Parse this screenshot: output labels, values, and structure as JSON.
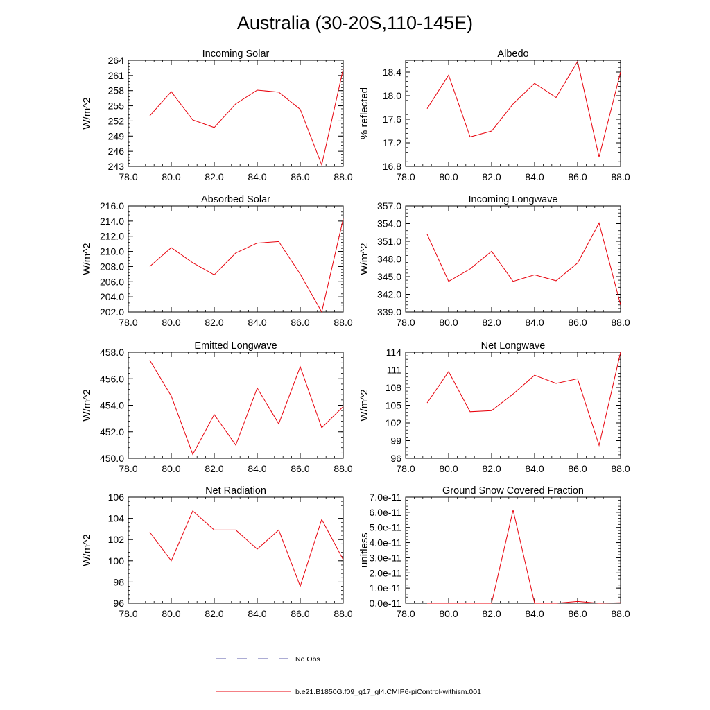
{
  "page": {
    "title": "Australia (30-20S,110-145E)"
  },
  "legend": {
    "entries": [
      {
        "label": "No Obs",
        "color": "#5a5aaa",
        "dash": true
      },
      {
        "label": "b.e21.B1850G.f09_g17_gl4.CMIP6-piControl-withism.001",
        "color": "#e8000b",
        "dash": false
      }
    ]
  },
  "series_color": "#e8000b",
  "chart_data": [
    {
      "type": "line",
      "title": "Incoming Solar",
      "ylabel": "W/m^2",
      "xlim": [
        78,
        88
      ],
      "xticks": [
        78,
        80,
        82,
        84,
        86,
        88
      ],
      "xtick_labels": [
        "78.0",
        "80.0",
        "82.0",
        "84.0",
        "86.0",
        "88.0"
      ],
      "ylim": [
        243,
        264
      ],
      "yticks": [
        243,
        246,
        249,
        252,
        255,
        258,
        261,
        264
      ],
      "ytick_labels": [
        "243",
        "246",
        "249",
        "252",
        "255",
        "258",
        "261",
        "264"
      ],
      "yminor_step": 0.6,
      "x": [
        79,
        80,
        81,
        82,
        83,
        84,
        85,
        86,
        87,
        88
      ],
      "y": [
        253.0,
        257.8,
        252.2,
        250.7,
        255.4,
        258.1,
        257.7,
        254.3,
        243.3,
        262.3
      ]
    },
    {
      "type": "line",
      "title": "Albedo",
      "ylabel": "% reflected",
      "xlim": [
        78,
        88
      ],
      "xticks": [
        78,
        80,
        82,
        84,
        86,
        88
      ],
      "xtick_labels": [
        "78.0",
        "80.0",
        "82.0",
        "84.0",
        "86.0",
        "88.0"
      ],
      "ylim": [
        16.8,
        18.6
      ],
      "yticks": [
        16.8,
        17.2,
        17.6,
        18.0,
        18.4
      ],
      "ytick_labels": [
        "16.8",
        "17.2",
        "17.6",
        "18.0",
        "18.4"
      ],
      "yminor_step": 0.08,
      "x": [
        79,
        80,
        81,
        82,
        83,
        84,
        85,
        86,
        87,
        88
      ],
      "y": [
        17.78,
        18.35,
        17.3,
        17.4,
        17.86,
        18.21,
        17.97,
        18.58,
        16.96,
        18.4
      ]
    },
    {
      "type": "line",
      "title": "Absorbed Solar",
      "ylabel": "W/m^2",
      "xlim": [
        78,
        88
      ],
      "xticks": [
        78,
        80,
        82,
        84,
        86,
        88
      ],
      "xtick_labels": [
        "78.0",
        "80.0",
        "82.0",
        "84.0",
        "86.0",
        "88.0"
      ],
      "ylim": [
        202,
        216
      ],
      "yticks": [
        202,
        204,
        206,
        208,
        210,
        212,
        214,
        216
      ],
      "ytick_labels": [
        "202.0",
        "204.0",
        "206.0",
        "208.0",
        "210.0",
        "212.0",
        "214.0",
        "216.0"
      ],
      "yminor_step": 0.4,
      "x": [
        79,
        80,
        81,
        82,
        83,
        84,
        85,
        86,
        87,
        88
      ],
      "y": [
        208.0,
        210.5,
        208.5,
        206.9,
        209.8,
        211.1,
        211.3,
        207.0,
        202.0,
        214.3
      ]
    },
    {
      "type": "line",
      "title": "Incoming Longwave",
      "ylabel": "W/m^2",
      "xlim": [
        78,
        88
      ],
      "xticks": [
        78,
        80,
        82,
        84,
        86,
        88
      ],
      "xtick_labels": [
        "78.0",
        "80.0",
        "82.0",
        "84.0",
        "86.0",
        "88.0"
      ],
      "ylim": [
        339,
        357
      ],
      "yticks": [
        339,
        342,
        345,
        348,
        351,
        354,
        357
      ],
      "ytick_labels": [
        "339.0",
        "342.0",
        "345.0",
        "348.0",
        "351.0",
        "354.0",
        "357.0"
      ],
      "yminor_step": 0.6,
      "x": [
        79,
        80,
        81,
        82,
        83,
        84,
        85,
        86,
        87,
        88
      ],
      "y": [
        352.2,
        344.2,
        346.3,
        349.3,
        344.2,
        345.3,
        344.3,
        347.3,
        354.1,
        340.2
      ]
    },
    {
      "type": "line",
      "title": "Emitted Longwave",
      "ylabel": "W/m^2",
      "xlim": [
        78,
        88
      ],
      "xticks": [
        78,
        80,
        82,
        84,
        86,
        88
      ],
      "xtick_labels": [
        "78.0",
        "80.0",
        "82.0",
        "84.0",
        "86.0",
        "88.0"
      ],
      "ylim": [
        450,
        458
      ],
      "yticks": [
        450,
        452,
        454,
        456,
        458
      ],
      "ytick_labels": [
        "450.0",
        "452.0",
        "454.0",
        "456.0",
        "458.0"
      ],
      "yminor_step": 0.4,
      "x": [
        79,
        80,
        81,
        82,
        83,
        84,
        85,
        86,
        87,
        88
      ],
      "y": [
        457.4,
        454.7,
        450.3,
        453.3,
        451.0,
        455.3,
        452.6,
        456.9,
        452.3,
        453.9
      ]
    },
    {
      "type": "line",
      "title": "Net Longwave",
      "ylabel": "W/m^2",
      "xlim": [
        78,
        88
      ],
      "xticks": [
        78,
        80,
        82,
        84,
        86,
        88
      ],
      "xtick_labels": [
        "78.0",
        "80.0",
        "82.0",
        "84.0",
        "86.0",
        "88.0"
      ],
      "ylim": [
        96,
        114
      ],
      "yticks": [
        96,
        99,
        102,
        105,
        108,
        111,
        114
      ],
      "ytick_labels": [
        "96",
        "99",
        "102",
        "105",
        "108",
        "111",
        "114"
      ],
      "yminor_step": 0.6,
      "x": [
        79,
        80,
        81,
        82,
        83,
        84,
        85,
        86,
        87,
        88
      ],
      "y": [
        105.4,
        110.7,
        103.9,
        104.1,
        106.9,
        110.1,
        108.7,
        109.5,
        98.2,
        114.0
      ]
    },
    {
      "type": "line",
      "title": "Net Radiation",
      "ylabel": "W/m^2",
      "xlim": [
        78,
        88
      ],
      "xticks": [
        78,
        80,
        82,
        84,
        86,
        88
      ],
      "xtick_labels": [
        "78.0",
        "80.0",
        "82.0",
        "84.0",
        "86.0",
        "88.0"
      ],
      "ylim": [
        96,
        106
      ],
      "yticks": [
        96,
        98,
        100,
        102,
        104,
        106
      ],
      "ytick_labels": [
        "96",
        "98",
        "100",
        "102",
        "104",
        "106"
      ],
      "yminor_step": 0.4,
      "x": [
        79,
        80,
        81,
        82,
        83,
        84,
        85,
        86,
        87,
        88
      ],
      "y": [
        102.7,
        100.0,
        104.7,
        102.9,
        102.9,
        101.1,
        102.9,
        97.6,
        103.9,
        100.1
      ]
    },
    {
      "type": "line",
      "title": "Ground Snow Covered Fraction",
      "ylabel": "unitless",
      "xlim": [
        78,
        88
      ],
      "xticks": [
        78,
        80,
        82,
        84,
        86,
        88
      ],
      "xtick_labels": [
        "78.0",
        "80.0",
        "82.0",
        "84.0",
        "86.0",
        "88.0"
      ],
      "ylim": [
        0,
        7e-11
      ],
      "yticks": [
        0,
        1e-11,
        2e-11,
        3e-11,
        4e-11,
        5e-11,
        6e-11,
        7e-11
      ],
      "ytick_labels": [
        "0.0e-11",
        "1.0e-11",
        "2.0e-11",
        "3.0e-11",
        "4.0e-11",
        "5.0e-11",
        "6.0e-11",
        "7.0e-11"
      ],
      "yminor_step": 2e-12,
      "x": [
        79,
        80,
        81,
        82,
        83,
        84,
        85,
        86,
        87,
        88
      ],
      "y": [
        0,
        0,
        0,
        0,
        6.15e-11,
        0,
        0,
        1.2e-12,
        0,
        3e-13
      ]
    }
  ]
}
